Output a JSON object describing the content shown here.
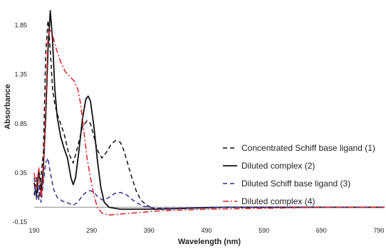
{
  "chart_data": {
    "type": "line",
    "title": "",
    "xlabel": "Wavelength (nm)",
    "ylabel": "Absorbance",
    "xlim": [
      190,
      800
    ],
    "ylim": [
      -0.15,
      2.05
    ],
    "x_ticks": [
      190,
      290,
      390,
      490,
      590,
      690,
      790
    ],
    "y_ticks": [
      -0.15,
      0.35,
      0.85,
      1.35,
      1.85
    ],
    "x_tick_labels": [
      "190",
      "290",
      "390",
      "490",
      "590",
      "690",
      "790"
    ],
    "y_tick_labels": [
      "-0.15",
      "0.35",
      "0.85",
      "1.35",
      "1.85"
    ],
    "grid": false,
    "legend_position": "right",
    "series": [
      {
        "name": "Concentrated Schiff base ligand (1)",
        "style": "dashed",
        "color": "#111111",
        "x": [
          190,
          194,
          198,
          202,
          206,
          210,
          214,
          218,
          222,
          226,
          230,
          236,
          242,
          250,
          258,
          266,
          274,
          282,
          288,
          294,
          300,
          308,
          316,
          324,
          332,
          340,
          346,
          352,
          360,
          368,
          376,
          384,
          392,
          400,
          420,
          460,
          520,
          600,
          700,
          800
        ],
        "y": [
          0.12,
          0.3,
          0.08,
          0.32,
          0.55,
          1.55,
          1.9,
          1.6,
          1.2,
          1.05,
          0.95,
          0.85,
          0.75,
          0.55,
          0.45,
          0.62,
          0.82,
          0.88,
          0.85,
          0.72,
          0.58,
          0.5,
          0.56,
          0.64,
          0.68,
          0.66,
          0.58,
          0.46,
          0.3,
          0.16,
          0.07,
          0.03,
          0.0,
          -0.02,
          -0.02,
          -0.01,
          0.0,
          0.0,
          0.0,
          0.0
        ]
      },
      {
        "name": "Diluted complex (2)",
        "style": "solid",
        "color": "#111111",
        "x": [
          190,
          194,
          198,
          202,
          206,
          210,
          214,
          218,
          222,
          226,
          230,
          236,
          242,
          248,
          254,
          258,
          262,
          268,
          274,
          280,
          284,
          288,
          294,
          300,
          306,
          312,
          320,
          330,
          340,
          360,
          400,
          460,
          520,
          600,
          700,
          800
        ],
        "y": [
          0.25,
          0.1,
          0.38,
          0.15,
          0.4,
          0.9,
          1.6,
          2.0,
          1.7,
          1.2,
          0.92,
          0.72,
          0.6,
          0.5,
          0.3,
          0.23,
          0.3,
          0.58,
          0.9,
          1.1,
          1.13,
          1.08,
          0.82,
          0.48,
          0.2,
          0.05,
          0.0,
          -0.01,
          -0.02,
          -0.02,
          -0.02,
          -0.01,
          0.0,
          0.0,
          0.0,
          0.0
        ]
      },
      {
        "name": "Diluted Schiff base ligand (3)",
        "style": "dashed",
        "color": "#3a2a90",
        "x": [
          190,
          194,
          198,
          202,
          206,
          210,
          214,
          218,
          224,
          230,
          240,
          250,
          258,
          266,
          274,
          282,
          288,
          294,
          302,
          310,
          320,
          330,
          340,
          350,
          360,
          370,
          380,
          400,
          440,
          500,
          600,
          700,
          800
        ],
        "y": [
          0.3,
          0.08,
          0.22,
          0.05,
          0.25,
          0.45,
          0.5,
          0.35,
          0.18,
          0.1,
          0.06,
          0.04,
          0.02,
          0.05,
          0.12,
          0.16,
          0.17,
          0.15,
          0.1,
          0.07,
          0.1,
          0.14,
          0.15,
          0.13,
          0.08,
          0.04,
          0.01,
          -0.01,
          -0.01,
          0.0,
          0.0,
          0.0,
          0.0
        ]
      },
      {
        "name": "Diluted complex (4)",
        "style": "dash-dot",
        "color": "#e0202a",
        "x": [
          190,
          194,
          198,
          202,
          206,
          210,
          214,
          218,
          222,
          228,
          236,
          244,
          252,
          260,
          266,
          270,
          274,
          278,
          282,
          288,
          294,
          300,
          308,
          320,
          340,
          360,
          380,
          400,
          440,
          500,
          600,
          700,
          800
        ],
        "y": [
          0.35,
          0.2,
          0.4,
          0.1,
          0.3,
          1.0,
          1.75,
          1.8,
          1.75,
          1.62,
          1.48,
          1.38,
          1.33,
          1.28,
          1.2,
          1.08,
          0.9,
          0.7,
          0.5,
          0.3,
          0.12,
          0.0,
          -0.06,
          -0.08,
          -0.07,
          -0.06,
          -0.05,
          -0.04,
          -0.03,
          -0.02,
          -0.01,
          0.0,
          0.0
        ]
      }
    ]
  }
}
